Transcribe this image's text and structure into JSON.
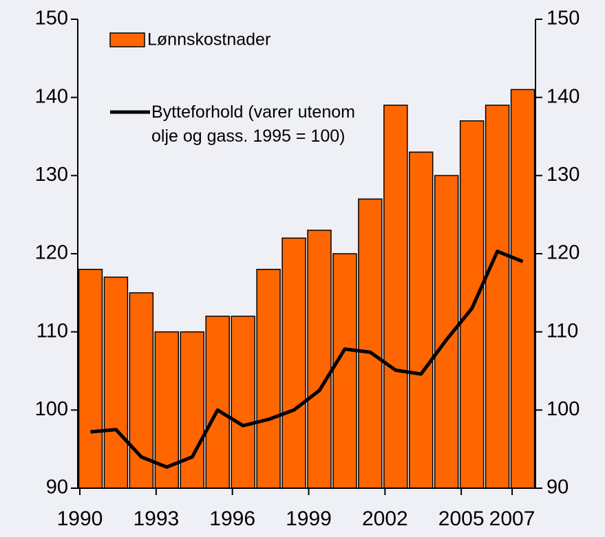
{
  "chart_data": {
    "type": "bar",
    "categories": [
      "1990",
      null,
      null,
      "1993",
      null,
      null,
      "1996",
      null,
      null,
      "1999",
      null,
      null,
      "2002",
      null,
      null,
      "2005",
      null,
      "2007"
    ],
    "series": [
      {
        "name": "Lønnskostnader",
        "type": "bar",
        "color": "#ff6600",
        "values": [
          118,
          117,
          115,
          110,
          110,
          112,
          112,
          118,
          122,
          123,
          120,
          127,
          139,
          133,
          130,
          137,
          139,
          141
        ]
      },
      {
        "name": "Bytteforhold (varer utenom olje og gass. 1995 = 100)",
        "type": "line",
        "color": "#000000",
        "values": [
          97.2,
          97.5,
          94,
          92.7,
          94,
          100,
          98,
          98.8,
          100,
          102.5,
          107.8,
          107.4,
          105.1,
          104.6,
          109,
          113,
          120.3,
          119
        ]
      }
    ],
    "ylim": [
      90,
      150
    ],
    "yticks": [
      90,
      100,
      110,
      120,
      130,
      140,
      150
    ],
    "y2lim": [
      90,
      150
    ],
    "y2ticks": [
      90,
      100,
      110,
      120,
      130,
      140,
      150
    ]
  }
}
